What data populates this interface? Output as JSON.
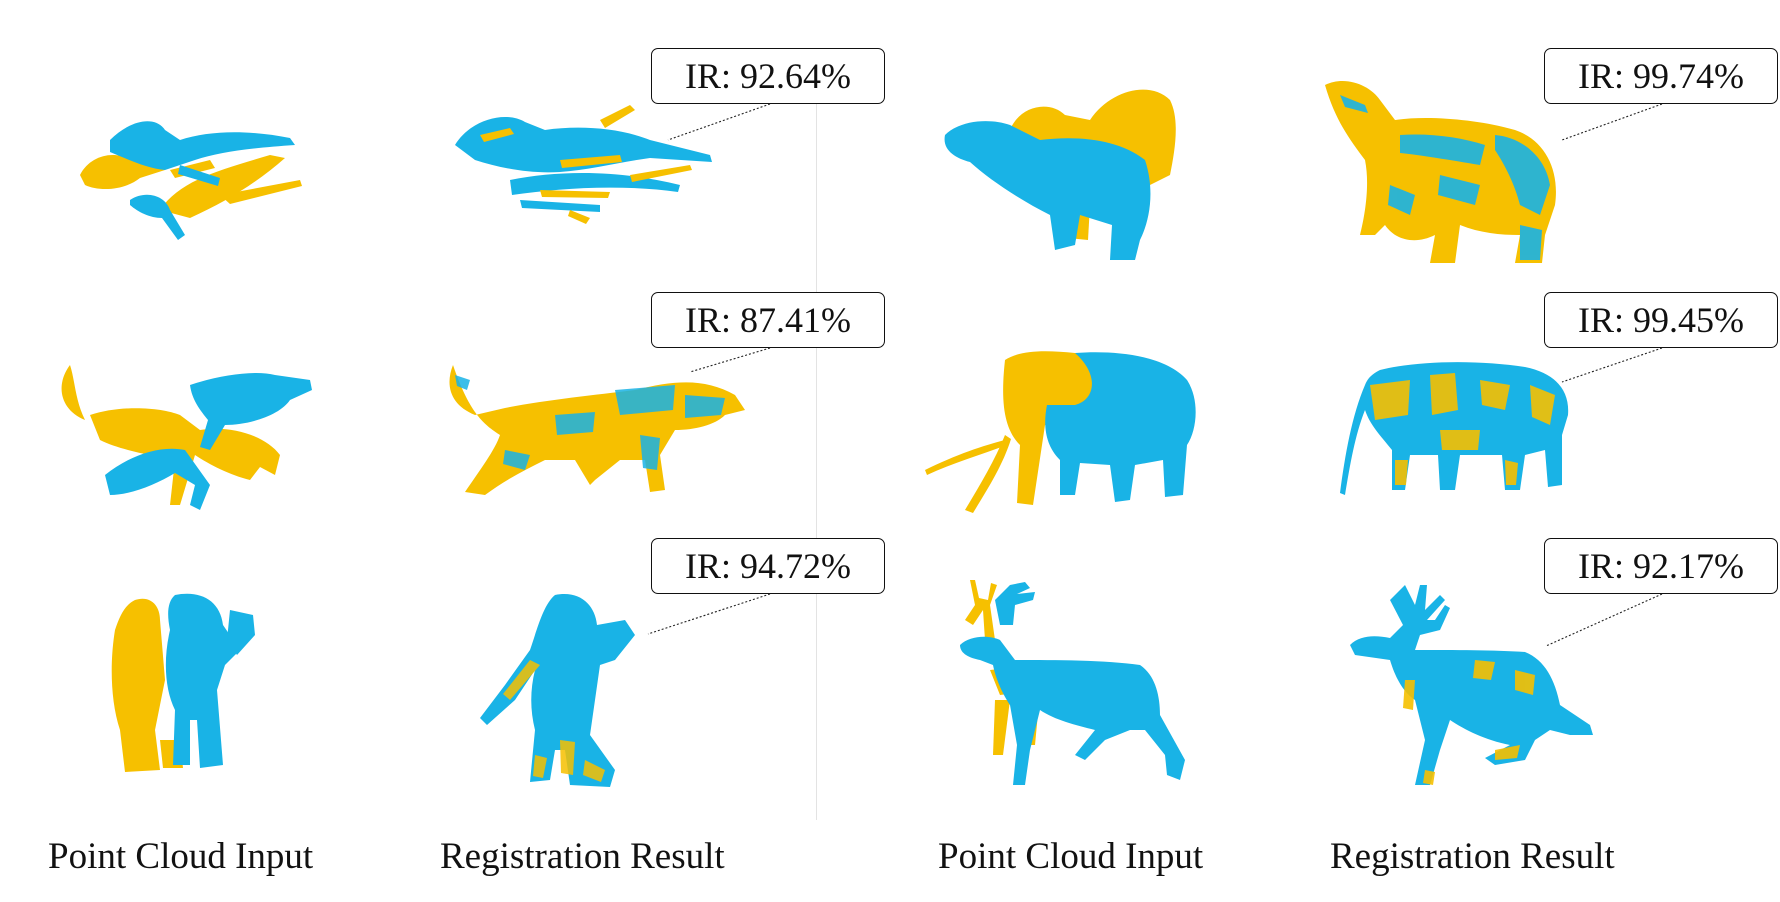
{
  "colors": {
    "source": "#19b3e6",
    "target": "#f6c000"
  },
  "labels": {
    "col1": "Point Cloud Input",
    "col2": "Registration Result",
    "col3": "Point Cloud Input",
    "col4": "Registration Result"
  },
  "results": [
    {
      "object": "dragon-icon",
      "ir": "IR: 92.64%"
    },
    {
      "object": "bear-icon",
      "ir": "IR: 99.74%"
    },
    {
      "object": "wolf-icon",
      "ir": "IR: 87.41%"
    },
    {
      "object": "elephant-icon",
      "ir": "IR: 99.45%"
    },
    {
      "object": "monster-icon",
      "ir": "IR: 94.72%"
    },
    {
      "object": "deer-icon",
      "ir": "IR: 92.17%"
    }
  ]
}
